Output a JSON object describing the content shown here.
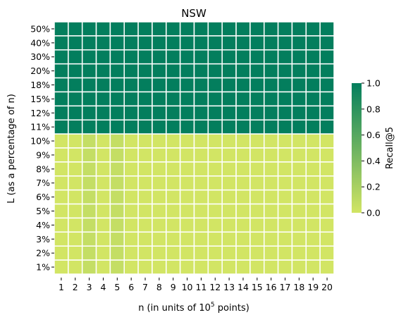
{
  "chart_data": {
    "type": "heatmap",
    "title": "NSW",
    "xlabel_prefix": "n (in units of 10",
    "xlabel_exp": "5",
    "xlabel_suffix": " points)",
    "ylabel": "L (as a percentage of n)",
    "x_categories": [
      "1",
      "2",
      "3",
      "4",
      "5",
      "6",
      "7",
      "8",
      "9",
      "10",
      "11",
      "12",
      "13",
      "14",
      "15",
      "16",
      "17",
      "18",
      "19",
      "20"
    ],
    "y_categories": [
      "50%",
      "40%",
      "30%",
      "20%",
      "18%",
      "15%",
      "12%",
      "11%",
      "10%",
      "9%",
      "8%",
      "7%",
      "6%",
      "5%",
      "4%",
      "3%",
      "2%",
      "1%"
    ],
    "values": [
      [
        1,
        1,
        1,
        1,
        1,
        1,
        1,
        1,
        1,
        1,
        1,
        1,
        1,
        1,
        1,
        1,
        1,
        1,
        1,
        1
      ],
      [
        1,
        1,
        1,
        1,
        1,
        1,
        1,
        1,
        1,
        1,
        1,
        1,
        1,
        1,
        1,
        1,
        1,
        1,
        1,
        1
      ],
      [
        1,
        1,
        1,
        1,
        1,
        1,
        1,
        1,
        1,
        1,
        1,
        1,
        1,
        1,
        1,
        1,
        1,
        1,
        1,
        1
      ],
      [
        1,
        1,
        1,
        1,
        1,
        1,
        1,
        1,
        1,
        1,
        1,
        1,
        1,
        1,
        1,
        1,
        1,
        1,
        1,
        1
      ],
      [
        1,
        1,
        1,
        1,
        1,
        1,
        1,
        1,
        1,
        1,
        1,
        1,
        1,
        1,
        1,
        1,
        1,
        1,
        1,
        1
      ],
      [
        1,
        1,
        1,
        1,
        1,
        1,
        1,
        1,
        1,
        1,
        1,
        1,
        1,
        1,
        1,
        1,
        1,
        1,
        1,
        1
      ],
      [
        1,
        1,
        1,
        1,
        1,
        1,
        1,
        1,
        1,
        1,
        1,
        1,
        1,
        1,
        1,
        1,
        1,
        1,
        1,
        1
      ],
      [
        1,
        1,
        1,
        1,
        1,
        1,
        1,
        1,
        1,
        1,
        1,
        1,
        1,
        1,
        1,
        1,
        1,
        1,
        1,
        1
      ],
      [
        0,
        0,
        0.07,
        0,
        0.07,
        0,
        0,
        0,
        0,
        0,
        0,
        0,
        0,
        0,
        0,
        0,
        0,
        0,
        0,
        0
      ],
      [
        0,
        0,
        0.07,
        0,
        0.07,
        0,
        0,
        0,
        0,
        0,
        0,
        0,
        0,
        0,
        0,
        0,
        0,
        0,
        0,
        0
      ],
      [
        0,
        0,
        0.07,
        0,
        0.07,
        0,
        0,
        0,
        0,
        0,
        0,
        0,
        0,
        0,
        0,
        0,
        0,
        0,
        0,
        0
      ],
      [
        0,
        0,
        0.07,
        0,
        0.07,
        0,
        0,
        0,
        0,
        0,
        0,
        0,
        0,
        0,
        0,
        0,
        0,
        0,
        0,
        0
      ],
      [
        0,
        0,
        0.07,
        0,
        0.07,
        0,
        0,
        0,
        0,
        0,
        0,
        0,
        0,
        0,
        0,
        0,
        0,
        0,
        0,
        0
      ],
      [
        0,
        0,
        0.07,
        0,
        0.07,
        0,
        0,
        0,
        0,
        0,
        0,
        0,
        0,
        0,
        0,
        0,
        0,
        0,
        0,
        0
      ],
      [
        0,
        0,
        0.07,
        0,
        0.07,
        0,
        0,
        0,
        0,
        0,
        0,
        0,
        0,
        0,
        0,
        0,
        0,
        0,
        0,
        0
      ],
      [
        0,
        0,
        0.07,
        0,
        0.07,
        0,
        0,
        0,
        0,
        0,
        0,
        0,
        0,
        0,
        0,
        0,
        0,
        0,
        0,
        0
      ],
      [
        0,
        0,
        0.07,
        0,
        0.07,
        0,
        0,
        0,
        0,
        0,
        0,
        0,
        0,
        0,
        0,
        0,
        0,
        0,
        0,
        0
      ],
      [
        0,
        0,
        0.07,
        0,
        0.07,
        0,
        0,
        0,
        0,
        0,
        0,
        0,
        0,
        0,
        0,
        0,
        0,
        0,
        0,
        0
      ]
    ],
    "colorbar": {
      "label": "Recall@5",
      "range": [
        0.0,
        1.0
      ],
      "ticks": [
        "0.0",
        "0.2",
        "0.4",
        "0.6",
        "0.8",
        "1.0"
      ],
      "colors": [
        "#d2e564",
        "#037e5d"
      ]
    },
    "cell_border_color": "#ffffff"
  }
}
